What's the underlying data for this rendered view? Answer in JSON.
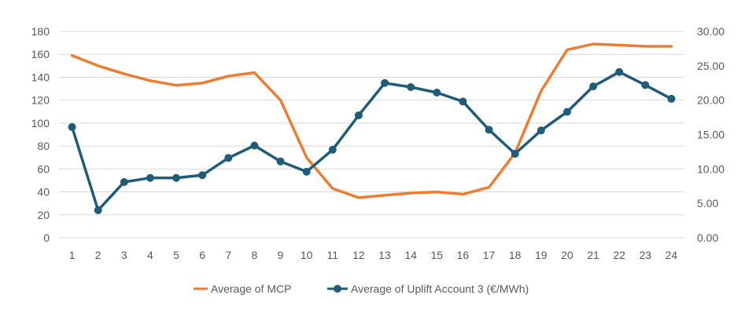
{
  "chart_data": {
    "type": "line",
    "title": "",
    "xlabel": "",
    "ylabel": "",
    "x": [
      1,
      2,
      3,
      4,
      5,
      6,
      7,
      8,
      9,
      10,
      11,
      12,
      13,
      14,
      15,
      16,
      17,
      18,
      19,
      20,
      21,
      22,
      23,
      24
    ],
    "x_tick_labels": [
      "1",
      "2",
      "3",
      "4",
      "5",
      "6",
      "7",
      "8",
      "9",
      "10",
      "11",
      "12",
      "13",
      "14",
      "15",
      "16",
      "17",
      "18",
      "19",
      "20",
      "21",
      "22",
      "23",
      "24"
    ],
    "y_left": {
      "min": 0,
      "max": 180,
      "ticks": [
        0,
        20,
        40,
        60,
        80,
        100,
        120,
        140,
        160,
        180
      ],
      "tick_labels": [
        "0",
        "20",
        "40",
        "60",
        "80",
        "100",
        "120",
        "140",
        "160",
        "180"
      ]
    },
    "y_right": {
      "min": 0,
      "max": 30,
      "ticks": [
        0,
        5,
        10,
        15,
        20,
        25,
        30
      ],
      "tick_labels": [
        "0.00",
        "5.00",
        "10.00",
        "15.00",
        "20.00",
        "25.00",
        "30.00"
      ]
    },
    "grid": true,
    "legend_position": "bottom",
    "series": [
      {
        "name": "Average of MCP",
        "axis": "left",
        "color": "#ED7D31",
        "markers": false,
        "values": [
          159,
          150,
          143,
          137,
          133,
          135,
          141,
          144,
          120,
          70,
          43,
          35,
          37,
          39,
          40,
          38,
          44,
          74,
          128,
          164,
          169,
          168,
          167,
          167
        ]
      },
      {
        "name": "Average of Uplift Account 3 (€/MWh)",
        "axis": "right",
        "color": "#1F5C7A",
        "markers": true,
        "values": [
          16.1,
          4.0,
          8.1,
          8.7,
          8.7,
          9.1,
          11.6,
          13.4,
          11.1,
          9.6,
          12.8,
          17.8,
          22.5,
          21.9,
          21.1,
          19.8,
          15.7,
          12.2,
          15.6,
          18.3,
          22.0,
          24.1,
          22.2,
          20.2
        ]
      }
    ]
  }
}
